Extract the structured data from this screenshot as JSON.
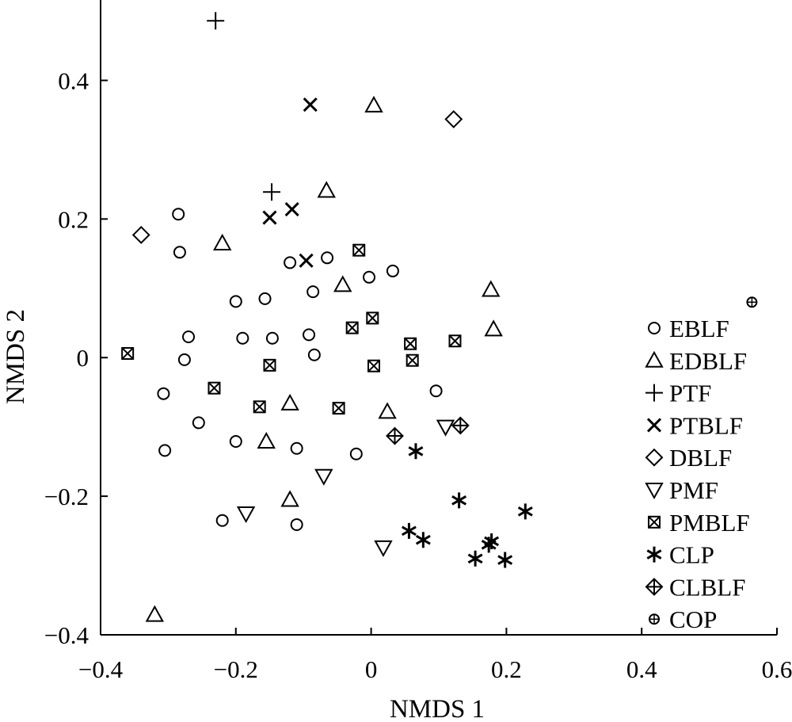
{
  "chart_data": {
    "type": "scatter",
    "title": "",
    "xlabel": "NMDS 1",
    "ylabel": "NMDS 2",
    "xlim": [
      -0.4,
      0.6
    ],
    "ylim": [
      -0.4,
      0.5
    ],
    "xticks": [
      {
        "value": -0.4,
        "label": "−0.4"
      },
      {
        "value": -0.2,
        "label": "−0.2"
      },
      {
        "value": 0,
        "label": "0"
      },
      {
        "value": 0.2,
        "label": "0.2"
      },
      {
        "value": 0.4,
        "label": "0.4"
      },
      {
        "value": 0.6,
        "label": "0.6"
      }
    ],
    "yticks": [
      {
        "value": -0.4,
        "label": "−0.4"
      },
      {
        "value": -0.2,
        "label": "−0.2"
      },
      {
        "value": 0,
        "label": "0"
      },
      {
        "value": 0.2,
        "label": "0.2"
      },
      {
        "value": 0.4,
        "label": "0.4"
      }
    ],
    "grid": false,
    "legend_position": "right",
    "series": [
      {
        "name": "EBLF",
        "marker": "circle",
        "points": [
          [
            -0.285,
            0.207
          ],
          [
            -0.283,
            0.152
          ],
          [
            -0.12,
            0.137
          ],
          [
            -0.065,
            0.144
          ],
          [
            0.032,
            0.125
          ],
          [
            -0.003,
            0.116
          ],
          [
            -0.2,
            0.081
          ],
          [
            -0.157,
            0.085
          ],
          [
            -0.086,
            0.095
          ],
          [
            -0.27,
            0.03
          ],
          [
            -0.19,
            0.028
          ],
          [
            -0.146,
            0.028
          ],
          [
            -0.092,
            0.033
          ],
          [
            -0.276,
            -0.003
          ],
          [
            -0.084,
            0.004
          ],
          [
            -0.307,
            -0.052
          ],
          [
            0.096,
            -0.048
          ],
          [
            -0.255,
            -0.094
          ],
          [
            -0.305,
            -0.134
          ],
          [
            -0.2,
            -0.121
          ],
          [
            -0.11,
            -0.131
          ],
          [
            -0.022,
            -0.139
          ],
          [
            -0.22,
            -0.235
          ],
          [
            -0.11,
            -0.241
          ]
        ]
      },
      {
        "name": "EDBLF",
        "marker": "triangle-up",
        "points": [
          [
            0.004,
            0.364
          ],
          [
            -0.066,
            0.241
          ],
          [
            -0.22,
            0.165
          ],
          [
            -0.042,
            0.105
          ],
          [
            0.177,
            0.098
          ],
          [
            0.181,
            0.041
          ],
          [
            -0.12,
            -0.066
          ],
          [
            0.024,
            -0.078
          ],
          [
            -0.155,
            -0.121
          ],
          [
            -0.12,
            -0.205
          ],
          [
            -0.32,
            -0.371
          ]
        ]
      },
      {
        "name": "PTF",
        "marker": "plus",
        "points": [
          [
            -0.23,
            0.486
          ],
          [
            -0.147,
            0.239
          ]
        ]
      },
      {
        "name": "PTBLF",
        "marker": "x",
        "points": [
          [
            -0.09,
            0.365
          ],
          [
            -0.117,
            0.214
          ],
          [
            -0.15,
            0.202
          ],
          [
            -0.096,
            0.14
          ]
        ]
      },
      {
        "name": "DBLF",
        "marker": "diamond",
        "points": [
          [
            0.122,
            0.344
          ],
          [
            -0.34,
            0.177
          ]
        ]
      },
      {
        "name": "PMF",
        "marker": "triangle-down",
        "points": [
          [
            0.11,
            -0.1
          ],
          [
            -0.07,
            -0.171
          ],
          [
            -0.185,
            -0.225
          ],
          [
            0.018,
            -0.274
          ]
        ]
      },
      {
        "name": "PMBLF",
        "marker": "square-x",
        "points": [
          [
            -0.018,
            0.155
          ],
          [
            -0.028,
            0.043
          ],
          [
            0.002,
            0.057
          ],
          [
            0.058,
            0.02
          ],
          [
            0.124,
            0.024
          ],
          [
            -0.36,
            0.006
          ],
          [
            -0.15,
            -0.011
          ],
          [
            0.004,
            -0.012
          ],
          [
            0.061,
            -0.004
          ],
          [
            -0.232,
            -0.044
          ],
          [
            -0.165,
            -0.071
          ],
          [
            -0.048,
            -0.073
          ]
        ]
      },
      {
        "name": "CLP",
        "marker": "asterisk",
        "points": [
          [
            0.066,
            -0.135
          ],
          [
            0.13,
            -0.206
          ],
          [
            0.228,
            -0.222
          ],
          [
            0.056,
            -0.25
          ],
          [
            0.077,
            -0.263
          ],
          [
            0.178,
            -0.265
          ],
          [
            0.174,
            -0.27
          ],
          [
            0.154,
            -0.29
          ],
          [
            0.198,
            -0.292
          ]
        ]
      },
      {
        "name": "CLBLF",
        "marker": "diamond-plus",
        "points": [
          [
            0.132,
            -0.098
          ],
          [
            0.035,
            -0.113
          ]
        ]
      },
      {
        "name": "COP",
        "marker": "circle-plus",
        "points": [
          [
            0.563,
            0.08
          ]
        ]
      }
    ]
  }
}
